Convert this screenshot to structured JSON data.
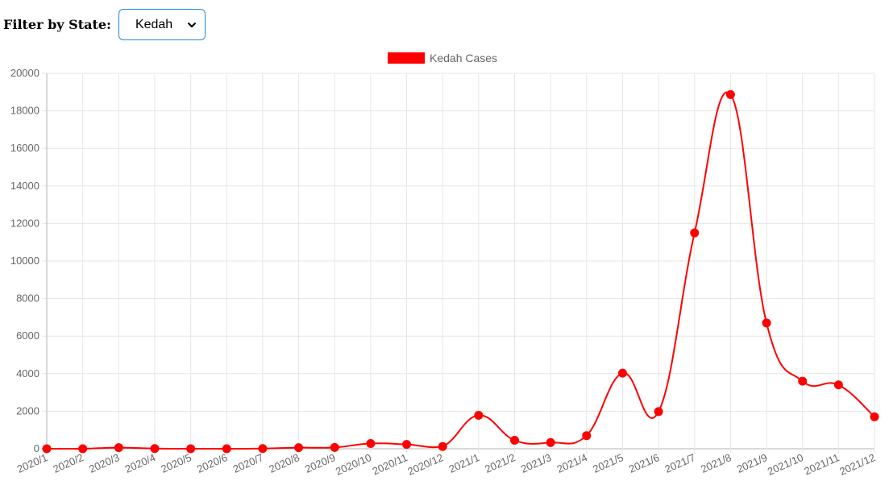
{
  "filter": {
    "label": "Filter by State:",
    "selected": "Kedah"
  },
  "colors": {
    "series": "#ff0000",
    "grid": "#e6e6e6",
    "axis": "#b3b3b3",
    "text": "#666666",
    "select_border": "#1e88e5"
  },
  "icons": {
    "dropdown": "chevron-down-icon"
  },
  "chart_data": {
    "type": "line",
    "title": "",
    "xlabel": "",
    "ylabel": "",
    "legend": "top-center",
    "grid": true,
    "ylim": [
      0,
      20000
    ],
    "y_ticks": [
      0,
      2000,
      4000,
      6000,
      8000,
      10000,
      12000,
      14000,
      16000,
      18000,
      20000
    ],
    "categories": [
      "2020/1",
      "2020/2",
      "2020/3",
      "2020/4",
      "2020/5",
      "2020/6",
      "2020/7",
      "2020/8",
      "2020/9",
      "2020/10",
      "2020/11",
      "2020/12",
      "2021/1",
      "2021/2",
      "2021/3",
      "2021/4",
      "2021/5",
      "2021/6",
      "2021/7",
      "2021/8",
      "2021/9",
      "2021/10",
      "2021/11",
      "2021/12"
    ],
    "series": [
      {
        "name": "Kedah Cases",
        "color": "#ff0000",
        "values": [
          0,
          0,
          60,
          10,
          0,
          0,
          10,
          60,
          70,
          280,
          230,
          120,
          1780,
          450,
          330,
          700,
          4030,
          1980,
          11500,
          18870,
          6700,
          3600,
          3400,
          1700
        ]
      }
    ]
  }
}
